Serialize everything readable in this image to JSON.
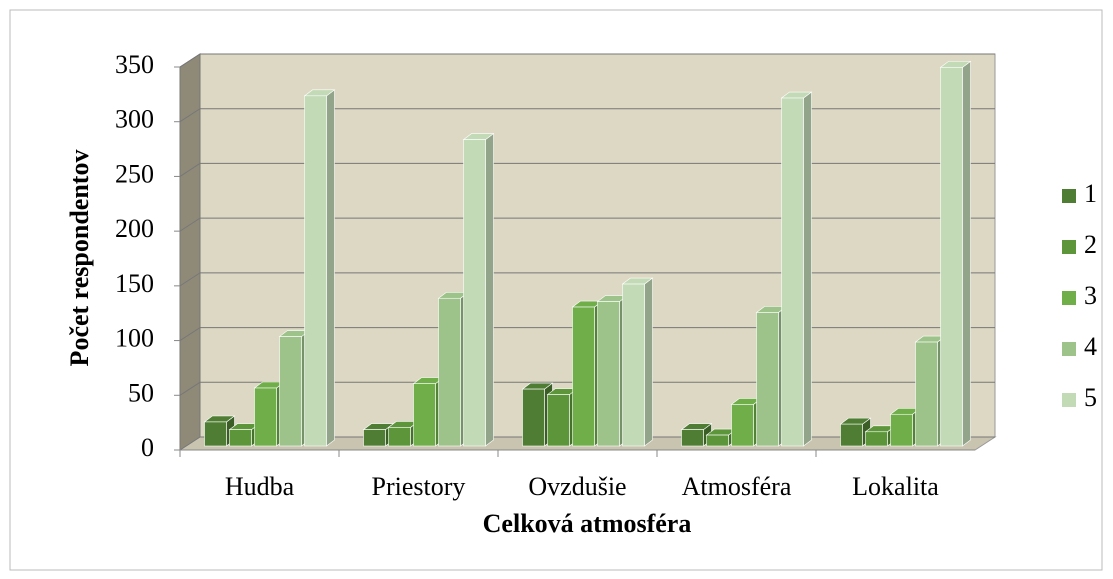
{
  "chart_data": {
    "type": "bar3d",
    "x_label": "Celková atmosféra",
    "y_label": "Počet respondentov",
    "categories": [
      "Hudba",
      "Priestory",
      "Ovzdušie",
      "Atmosféra",
      "Lokalita"
    ],
    "series": [
      {
        "name": "1",
        "color": "#4e7d33",
        "values": [
          22,
          15,
          52,
          15,
          20
        ]
      },
      {
        "name": "2",
        "color": "#5d963a",
        "values": [
          15,
          17,
          47,
          10,
          13
        ]
      },
      {
        "name": "3",
        "color": "#6fae49",
        "values": [
          53,
          57,
          127,
          38,
          29
        ]
      },
      {
        "name": "4",
        "color": "#9dc38a",
        "values": [
          100,
          135,
          132,
          122,
          95
        ]
      },
      {
        "name": "5",
        "color": "#c3dab6",
        "values": [
          320,
          280,
          148,
          318,
          346
        ]
      }
    ],
    "ylim": [
      0,
      350
    ],
    "yticks": [
      0,
      50,
      100,
      150,
      200,
      250,
      300,
      350
    ],
    "grid": true,
    "legend": "right"
  }
}
